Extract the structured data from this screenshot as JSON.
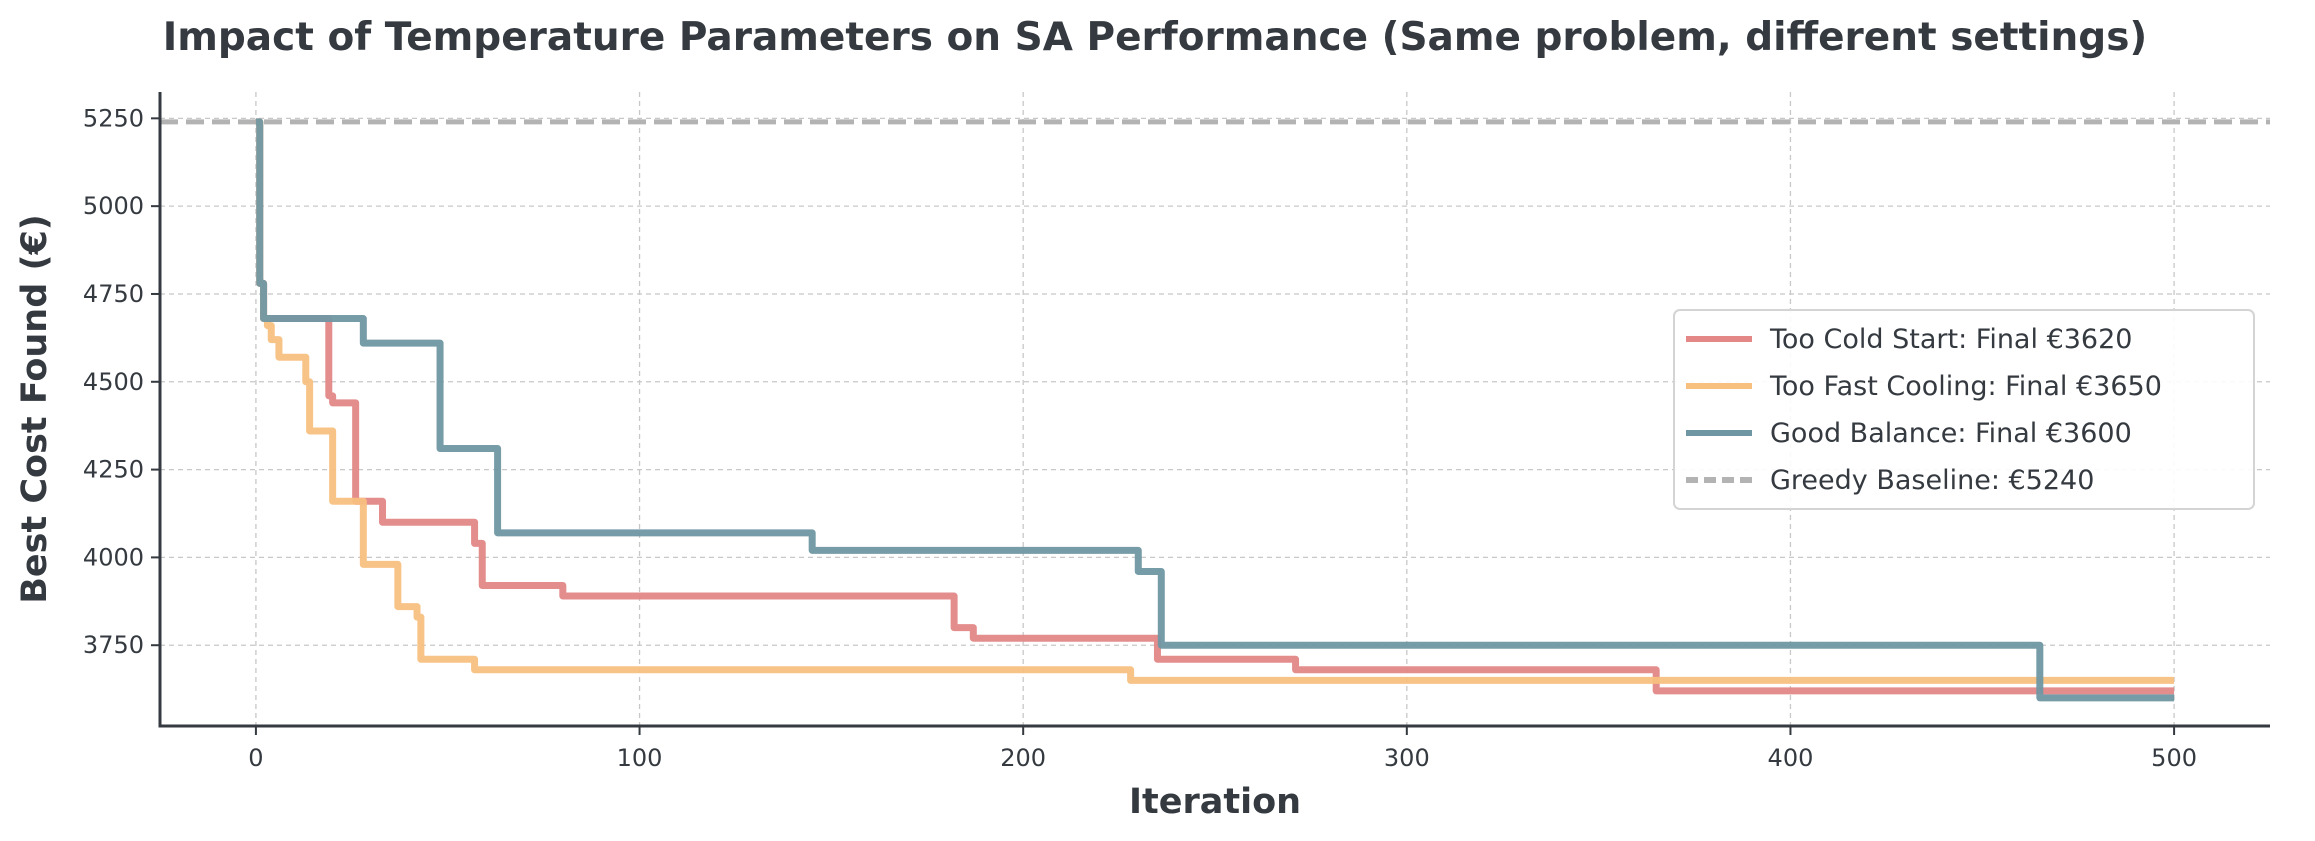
{
  "chart_data": {
    "type": "line",
    "title": "Impact of Temperature Parameters on SA Performance (Same problem, different settings)",
    "xlabel": "Iteration",
    "ylabel": "Best Cost Found (€)",
    "xlim": [
      -25,
      525
    ],
    "ylim": [
      3520,
      5325
    ],
    "xticks": [
      0,
      100,
      200,
      300,
      400,
      500
    ],
    "yticks": [
      3750,
      4000,
      4250,
      4500,
      4750,
      5000,
      5250
    ],
    "grid": true,
    "legend_position": "center-right",
    "step": "post",
    "series": [
      {
        "name": "Too Cold Start: Final €3620",
        "color": "#e38787",
        "points": [
          [
            0,
            5240
          ],
          [
            1,
            4780
          ],
          [
            2,
            4680
          ],
          [
            18,
            4680
          ],
          [
            19,
            4460
          ],
          [
            20,
            4440
          ],
          [
            25,
            4440
          ],
          [
            26,
            4160
          ],
          [
            32,
            4160
          ],
          [
            33,
            4100
          ],
          [
            56,
            4100
          ],
          [
            57,
            4040
          ],
          [
            58,
            4040
          ],
          [
            59,
            3920
          ],
          [
            79,
            3920
          ],
          [
            80,
            3890
          ],
          [
            181,
            3890
          ],
          [
            182,
            3800
          ],
          [
            186,
            3800
          ],
          [
            187,
            3770
          ],
          [
            234,
            3770
          ],
          [
            235,
            3710
          ],
          [
            270,
            3710
          ],
          [
            271,
            3680
          ],
          [
            364,
            3680
          ],
          [
            365,
            3620
          ],
          [
            500,
            3620
          ]
        ]
      },
      {
        "name": "Too Fast Cooling: Final €3650",
        "color": "#f8c07f",
        "points": [
          [
            0,
            5240
          ],
          [
            1,
            4780
          ],
          [
            2,
            4680
          ],
          [
            3,
            4660
          ],
          [
            4,
            4620
          ],
          [
            5,
            4620
          ],
          [
            6,
            4570
          ],
          [
            12,
            4570
          ],
          [
            13,
            4500
          ],
          [
            14,
            4360
          ],
          [
            19,
            4360
          ],
          [
            20,
            4160
          ],
          [
            27,
            4160
          ],
          [
            28,
            3980
          ],
          [
            36,
            3980
          ],
          [
            37,
            3860
          ],
          [
            41,
            3860
          ],
          [
            42,
            3830
          ],
          [
            43,
            3710
          ],
          [
            56,
            3710
          ],
          [
            57,
            3680
          ],
          [
            227,
            3680
          ],
          [
            228,
            3650
          ],
          [
            500,
            3650
          ]
        ]
      },
      {
        "name": "Good Balance: Final €3600",
        "color": "#6f97a3",
        "points": [
          [
            0,
            5240
          ],
          [
            1,
            4780
          ],
          [
            2,
            4680
          ],
          [
            27,
            4680
          ],
          [
            28,
            4610
          ],
          [
            47,
            4610
          ],
          [
            48,
            4310
          ],
          [
            62,
            4310
          ],
          [
            63,
            4070
          ],
          [
            144,
            4070
          ],
          [
            145,
            4020
          ],
          [
            229,
            4020
          ],
          [
            230,
            3960
          ],
          [
            235,
            3960
          ],
          [
            236,
            3750
          ],
          [
            464,
            3750
          ],
          [
            465,
            3600
          ],
          [
            500,
            3600
          ]
        ]
      }
    ],
    "baseline": {
      "name": "Greedy Baseline: €5240",
      "value": 5240,
      "color": "#b3b3b3"
    }
  }
}
